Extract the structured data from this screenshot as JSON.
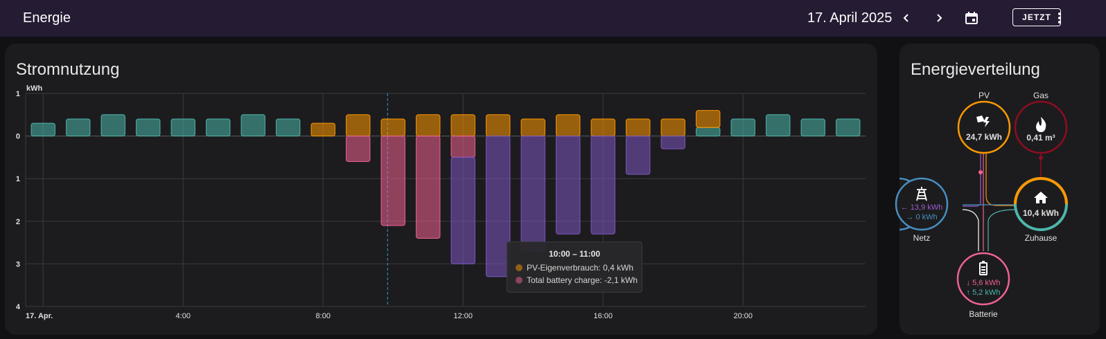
{
  "header": {
    "title": "Energie",
    "date": "17. April 2025",
    "now_label": "JETZT"
  },
  "colors": {
    "header_bg": "#251b33",
    "grid_return": "#4db6ac",
    "solar": "#ff9800",
    "battery_out": "#f06292",
    "battery_in": "#7e57c2",
    "gas": "#8e0d21",
    "grid": "#488fc2"
  },
  "usage_card": {
    "title": "Stromnutzung",
    "unit": "kWh"
  },
  "tooltip": {
    "title": "10:00 – 11:00",
    "rows": [
      {
        "label": "PV-Eigenverbrauch: 0,4 kWh",
        "color": "#ff9800"
      },
      {
        "label": "Total battery charge: -2,1 kWh",
        "color": "#f06292"
      }
    ]
  },
  "chart_data": {
    "type": "bar",
    "stacked": true,
    "unit": "kWh",
    "ylim": [
      -4,
      1
    ],
    "y_ticks": [
      1,
      0,
      -1,
      -2,
      -3,
      -4
    ],
    "y_tick_labels": [
      "1",
      "0",
      "1",
      "2",
      "3",
      "4"
    ],
    "x_tick_labels": [
      {
        "hour": 0,
        "label": "17. Apr."
      },
      {
        "hour": 4,
        "label": "4:00"
      },
      {
        "hour": 8,
        "label": "8:00"
      },
      {
        "hour": 12,
        "label": "12:00"
      },
      {
        "hour": 16,
        "label": "16:00"
      },
      {
        "hour": 20,
        "label": "20:00"
      }
    ],
    "hours": [
      0,
      1,
      2,
      3,
      4,
      5,
      6,
      7,
      8,
      9,
      10,
      11,
      12,
      13,
      14,
      15,
      16,
      17,
      18,
      19,
      20,
      21,
      22,
      23
    ],
    "series": [
      {
        "color": "#4db6ac",
        "values": [
          0.3,
          0.4,
          0.5,
          0.4,
          0.4,
          0.4,
          0.5,
          0.4,
          0,
          0,
          0,
          0,
          0,
          0,
          0,
          0,
          0,
          0,
          0,
          0.2,
          0.4,
          0.5,
          0.4,
          0.4
        ]
      },
      {
        "color": "#ff9800",
        "values": [
          0,
          0,
          0,
          0,
          0,
          0,
          0,
          0,
          0.3,
          0.5,
          0.4,
          0.5,
          0.5,
          0.5,
          0.4,
          0.5,
          0.4,
          0.4,
          0.4,
          0.4,
          0,
          0,
          0,
          0
        ]
      },
      {
        "color": "#f06292",
        "values": [
          0,
          0,
          0,
          0,
          0,
          0,
          0,
          0,
          0,
          -0.6,
          -2.1,
          -2.4,
          -0.5,
          0,
          0,
          0,
          0,
          0,
          0,
          0,
          0,
          0,
          0,
          0
        ]
      },
      {
        "color": "#7e57c2",
        "values": [
          0,
          0,
          0,
          0,
          0,
          0,
          0,
          0,
          0,
          0,
          0,
          0,
          -2.5,
          -3.3,
          -2.7,
          -2.3,
          -2.3,
          -0.9,
          -0.3,
          0,
          0,
          0,
          0,
          0
        ]
      }
    ],
    "selected_hour": 10
  },
  "distribution_card": {
    "title": "Energieverteilung",
    "nodes": {
      "pv": {
        "label": "PV",
        "value": "24,7 kWh",
        "icon": "solar-power-icon"
      },
      "gas": {
        "label": "Gas",
        "value": "0,41 m³",
        "icon": "fire-icon"
      },
      "grid": {
        "label": "Netz",
        "value_in": "13,9 kWh",
        "value_out": "0 kWh",
        "icon": "transmission-tower-icon"
      },
      "home": {
        "label": "Zuhause",
        "value": "10,4 kWh",
        "icon": "home-icon"
      },
      "battery": {
        "label": "Batterie",
        "value_out": "5,6 kWh",
        "value_in": "5,2 kWh",
        "icon": "battery-icon"
      }
    }
  }
}
